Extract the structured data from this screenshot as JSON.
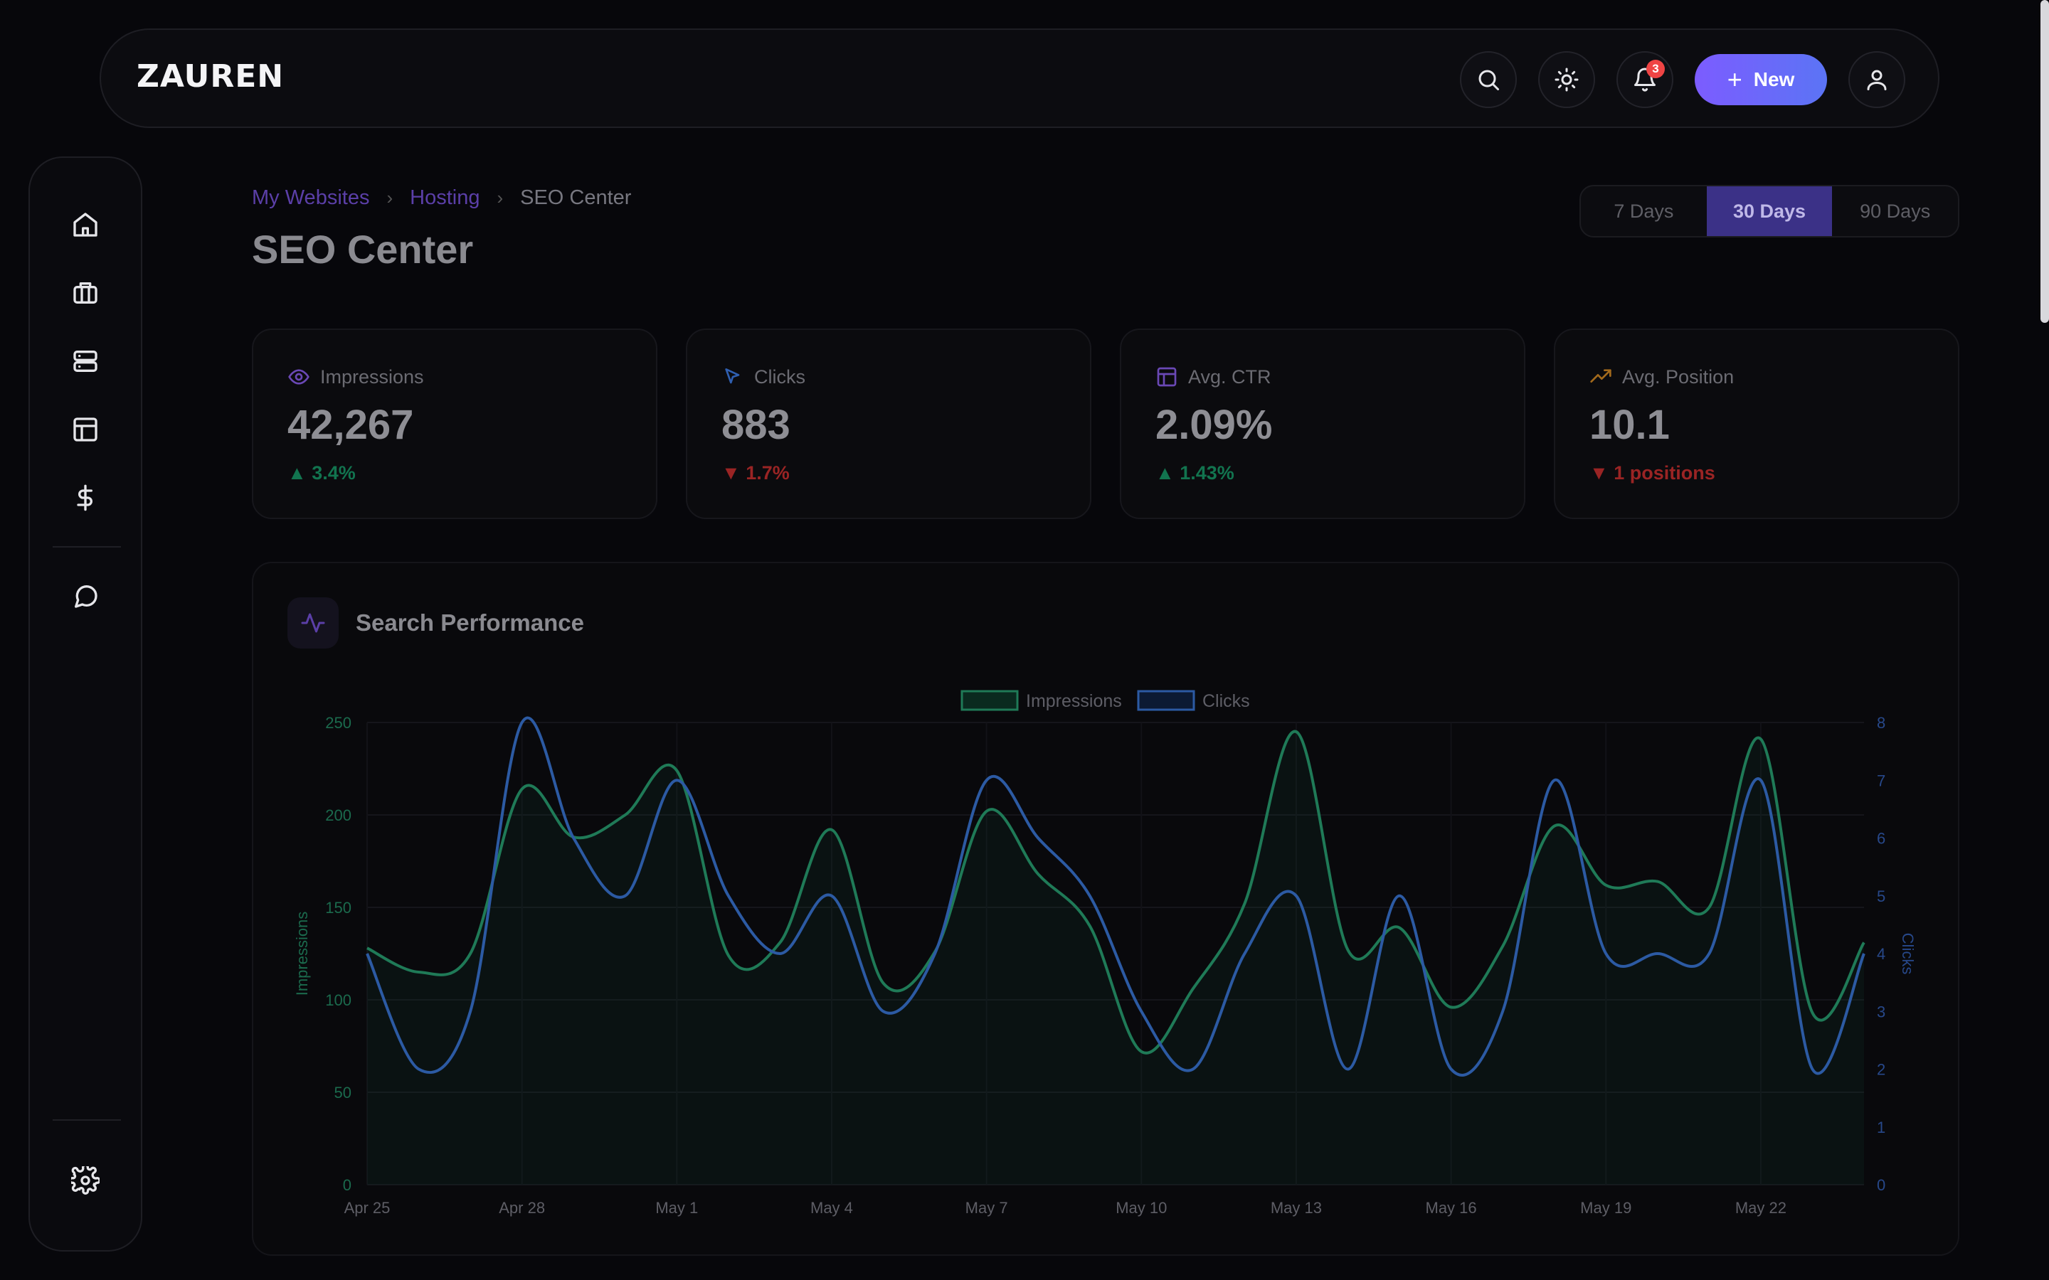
{
  "app": {
    "logo": "ZAUREN"
  },
  "header": {
    "notifications_count": "3",
    "new_label": "New"
  },
  "breadcrumb": [
    "My Websites",
    "Hosting",
    "SEO Center"
  ],
  "page_title": "SEO Center",
  "range": {
    "options": [
      "7 Days",
      "30 Days",
      "90 Days"
    ],
    "selected": "30 Days"
  },
  "stats": [
    {
      "label": "Impressions",
      "value": "42,267",
      "delta": "3.4%",
      "trend": "up",
      "icon": "eye-icon"
    },
    {
      "label": "Clicks",
      "value": "883",
      "delta": "1.7%",
      "trend": "down",
      "icon": "cursor-icon"
    },
    {
      "label": "Avg. CTR",
      "value": "2.09%",
      "delta": "1.43%",
      "trend": "up",
      "icon": "layout-icon"
    },
    {
      "label": "Avg. Position",
      "value": "10.1",
      "delta": "1 positions",
      "trend": "down",
      "icon": "trending-up-icon"
    }
  ],
  "colors": {
    "impressions": "#1f7a57",
    "clicks": "#2c5aa3",
    "accent": "#7c5cff"
  },
  "chart": {
    "title": "Search Performance",
    "chart_data": {
      "type": "line",
      "x": [
        "Apr 25",
        "Apr 26",
        "Apr 27",
        "Apr 28",
        "Apr 29",
        "Apr 30",
        "May 1",
        "May 2",
        "May 3",
        "May 4",
        "May 5",
        "May 6",
        "May 7",
        "May 8",
        "May 9",
        "May 10",
        "May 11",
        "May 12",
        "May 13",
        "May 14",
        "May 15",
        "May 16",
        "May 17",
        "May 18",
        "May 19",
        "May 20",
        "May 21",
        "May 22",
        "May 23",
        "May 24"
      ],
      "x_tick_labels": [
        "Apr 25",
        "Apr 28",
        "May 1",
        "May 4",
        "May 7",
        "May 10",
        "May 13",
        "May 16",
        "May 19",
        "May 22"
      ],
      "series": [
        {
          "name": "Impressions",
          "axis": "left",
          "values": [
            128,
            115,
            125,
            214,
            188,
            200,
            224,
            124,
            131,
            192,
            109,
            126,
            202,
            168,
            140,
            72,
            106,
            152,
            245,
            127,
            139,
            96,
            129,
            194,
            162,
            164,
            150,
            241,
            93,
            131
          ]
        },
        {
          "name": "Clicks",
          "axis": "right",
          "values": [
            4,
            2,
            3,
            8,
            6,
            5,
            7,
            5,
            4,
            5,
            3,
            4,
            7,
            6,
            5,
            3,
            2,
            4,
            5,
            2,
            5,
            2,
            3,
            7,
            4,
            4,
            4,
            7,
            2,
            4
          ]
        }
      ],
      "ylabel": "Impressions",
      "y2label": "Clicks",
      "ylim": [
        0,
        250
      ],
      "y2lim": [
        0,
        8
      ],
      "yticks": [
        0,
        50,
        100,
        150,
        200,
        250
      ],
      "y2ticks": [
        0,
        1,
        2,
        3,
        4,
        5,
        6,
        7,
        8
      ],
      "legend": "top-center",
      "grid": true
    }
  }
}
